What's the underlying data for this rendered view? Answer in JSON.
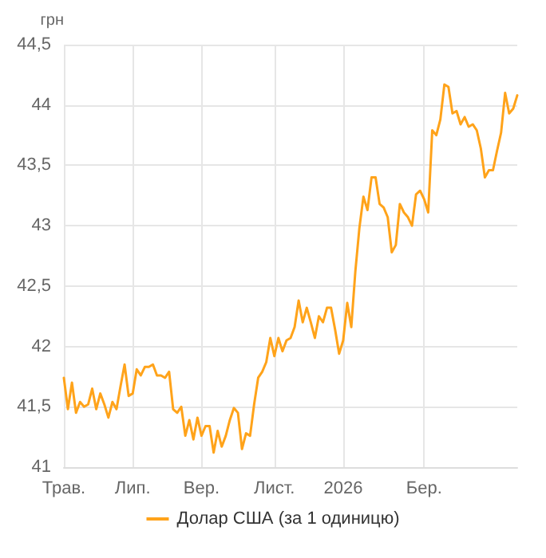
{
  "chart_data": {
    "type": "line",
    "ylabel": "грн",
    "categories": [
      "Трав.",
      null,
      null,
      null,
      null,
      null,
      null,
      null,
      null,
      null,
      null,
      null,
      null,
      null,
      null,
      null,
      null,
      "Лип.",
      null,
      null,
      null,
      null,
      null,
      null,
      null,
      null,
      null,
      null,
      null,
      null,
      null,
      null,
      null,
      null,
      "Вер.",
      null,
      null,
      null,
      null,
      null,
      null,
      null,
      null,
      null,
      null,
      null,
      null,
      null,
      null,
      null,
      null,
      null,
      "Лист.",
      null,
      null,
      null,
      null,
      null,
      null,
      null,
      null,
      null,
      null,
      null,
      null,
      null,
      null,
      null,
      null,
      "2026",
      null,
      null,
      null,
      null,
      null,
      null,
      null,
      null,
      null,
      null,
      null,
      null,
      null,
      null,
      null,
      null,
      null,
      null,
      null,
      "Бер.",
      null,
      null,
      null,
      null,
      null,
      null,
      null,
      null,
      null,
      null,
      null,
      null,
      null,
      null,
      null,
      null,
      null,
      null,
      null,
      null,
      null,
      null,
      null
    ],
    "series": [
      {
        "name": "Долар США (за 1 одиницю)",
        "color": "#ffa31a",
        "values": [
          41.74,
          41.48,
          41.7,
          41.45,
          41.54,
          41.5,
          41.52,
          41.65,
          41.48,
          41.61,
          41.52,
          41.41,
          41.54,
          41.48,
          41.67,
          41.85,
          41.59,
          41.61,
          41.81,
          41.76,
          41.83,
          41.83,
          41.85,
          41.76,
          41.76,
          41.74,
          41.79,
          41.48,
          41.45,
          41.5,
          41.26,
          41.39,
          41.23,
          41.41,
          41.26,
          41.34,
          41.34,
          41.12,
          41.3,
          41.17,
          41.26,
          41.39,
          41.49,
          41.45,
          41.15,
          41.28,
          41.26,
          41.52,
          41.74,
          41.79,
          41.87,
          42.07,
          41.92,
          42.07,
          41.96,
          42.05,
          42.07,
          42.16,
          42.38,
          42.2,
          42.32,
          42.2,
          42.07,
          42.25,
          42.2,
          42.32,
          42.32,
          42.14,
          41.94,
          42.05,
          42.36,
          42.16,
          42.62,
          42.98,
          43.24,
          43.13,
          43.4,
          43.4,
          43.18,
          43.15,
          43.07,
          42.78,
          42.84,
          43.18,
          43.11,
          43.07,
          43.0,
          43.26,
          43.29,
          43.22,
          43.11,
          43.79,
          43.75,
          43.88,
          44.17,
          44.15,
          43.93,
          43.95,
          43.84,
          43.9,
          43.82,
          43.84,
          43.79,
          43.64,
          43.4,
          43.46,
          43.46,
          43.62,
          43.77,
          44.1,
          43.93,
          43.97,
          44.08
        ]
      }
    ],
    "ylim": [
      41,
      44.5
    ],
    "yticks": [
      41,
      {
        "value": 41.5,
        "label": "41,5"
      },
      42,
      {
        "value": 42.5,
        "label": "42,5"
      },
      43,
      {
        "value": 43.5,
        "label": "43,5"
      },
      44,
      {
        "value": 44.5,
        "label": "44,5"
      }
    ],
    "grid": true,
    "legend": "bottom",
    "marker": "none",
    "line_style": "solid"
  }
}
